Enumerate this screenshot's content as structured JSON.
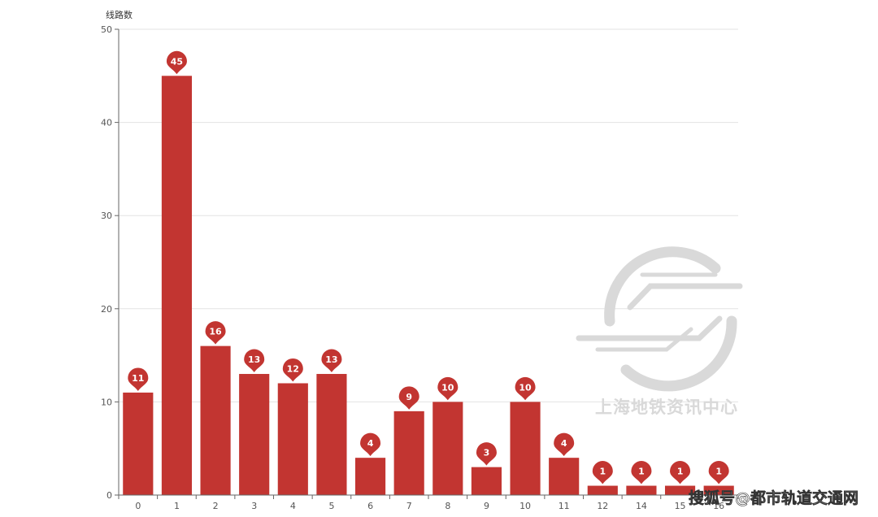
{
  "chart_data": {
    "type": "bar",
    "ylabel": "线路数",
    "xlabel": "",
    "categories": [
      "0",
      "1",
      "2",
      "3",
      "4",
      "5",
      "6",
      "7",
      "8",
      "9",
      "10",
      "11",
      "12",
      "14",
      "15",
      "16"
    ],
    "values": [
      11,
      45,
      16,
      13,
      12,
      13,
      4,
      9,
      10,
      3,
      10,
      4,
      1,
      1,
      1,
      1
    ],
    "yticks": [
      0,
      10,
      20,
      30,
      40,
      50
    ],
    "ylim": [
      0,
      50
    ],
    "grid": true,
    "data_labels": "pin markers above bars",
    "bar_color": "#c23531"
  },
  "watermark": {
    "text": "上海地铁资讯中心",
    "icon": "metro-logo-icon"
  },
  "credit": {
    "text": "搜狐号@都市轨道交通网"
  }
}
